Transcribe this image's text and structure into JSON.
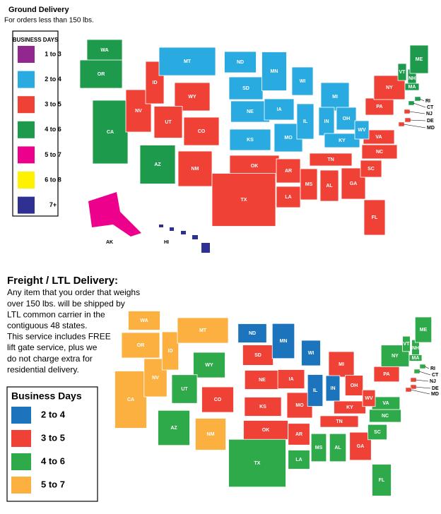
{
  "ground": {
    "title": "Ground Delivery",
    "subtitle": "For orders less than 150 lbs.",
    "legend": {
      "title": "BUSINESS DAYS",
      "items": [
        {
          "label": "1 to 3",
          "color": "#92278f"
        },
        {
          "label": "2 to 4",
          "color": "#29abe2"
        },
        {
          "label": "3 to 5",
          "color": "#ef4136"
        },
        {
          "label": "4 to 6",
          "color": "#1e9a4c"
        },
        {
          "label": "5 to 7",
          "color": "#ec008c"
        },
        {
          "label": "6 to 8",
          "color": "#fff200"
        },
        {
          "label": "7+",
          "color": "#2e3192"
        }
      ]
    },
    "states": [
      {
        "label": "WA",
        "color": "#1e9a4c"
      },
      {
        "label": "OR",
        "color": "#1e9a4c"
      },
      {
        "label": "CA",
        "color": "#1e9a4c"
      },
      {
        "label": "NV",
        "color": "#ef4136"
      },
      {
        "label": "ID",
        "color": "#ef4136"
      },
      {
        "label": "MT",
        "color": "#29abe2"
      },
      {
        "label": "WY",
        "color": "#ef4136"
      },
      {
        "label": "UT",
        "color": "#ef4136"
      },
      {
        "label": "CO",
        "color": "#ef4136"
      },
      {
        "label": "AZ",
        "color": "#1e9a4c"
      },
      {
        "label": "NM",
        "color": "#ef4136"
      },
      {
        "label": "ND",
        "color": "#29abe2"
      },
      {
        "label": "SD",
        "color": "#29abe2"
      },
      {
        "label": "NE",
        "color": "#29abe2"
      },
      {
        "label": "KS",
        "color": "#29abe2"
      },
      {
        "label": "OK",
        "color": "#ef4136"
      },
      {
        "label": "TX",
        "color": "#ef4136"
      },
      {
        "label": "MN",
        "color": "#29abe2"
      },
      {
        "label": "IA",
        "color": "#29abe2"
      },
      {
        "label": "MO",
        "color": "#29abe2"
      },
      {
        "label": "AR",
        "color": "#ef4136"
      },
      {
        "label": "LA",
        "color": "#ef4136"
      },
      {
        "label": "WI",
        "color": "#29abe2"
      },
      {
        "label": "IL",
        "color": "#29abe2"
      },
      {
        "label": "MS",
        "color": "#ef4136"
      },
      {
        "label": "MI",
        "color": "#29abe2"
      },
      {
        "label": "IN",
        "color": "#29abe2"
      },
      {
        "label": "OH",
        "color": "#29abe2"
      },
      {
        "label": "KY",
        "color": "#29abe2"
      },
      {
        "label": "TN",
        "color": "#ef4136"
      },
      {
        "label": "AL",
        "color": "#ef4136"
      },
      {
        "label": "GA",
        "color": "#ef4136"
      },
      {
        "label": "FL",
        "color": "#ef4136"
      },
      {
        "label": "SC",
        "color": "#ef4136"
      },
      {
        "label": "NC",
        "color": "#ef4136"
      },
      {
        "label": "VA",
        "color": "#ef4136"
      },
      {
        "label": "WV",
        "color": "#29abe2"
      },
      {
        "label": "PA",
        "color": "#ef4136"
      },
      {
        "label": "NY",
        "color": "#ef4136"
      },
      {
        "label": "VT",
        "color": "#1e9a4c"
      },
      {
        "label": "NH",
        "color": "#1e9a4c"
      },
      {
        "label": "ME",
        "color": "#1e9a4c"
      },
      {
        "label": "MA",
        "color": "#1e9a4c"
      },
      {
        "label": "RI",
        "color": "#1e9a4c"
      },
      {
        "label": "CT",
        "color": "#1e9a4c"
      },
      {
        "label": "NJ",
        "color": "#ef4136"
      },
      {
        "label": "DE",
        "color": "#ef4136"
      },
      {
        "label": "MD",
        "color": "#ef4136"
      },
      {
        "label": "AK",
        "color": "#ec008c"
      },
      {
        "label": "HI",
        "color": "#2e3192"
      }
    ]
  },
  "freight": {
    "title": "Freight / LTL Delivery:",
    "description": [
      "Any item that you order that weighs",
      "over 150 lbs. will be shipped by",
      "LTL common carrier in the",
      "contiguous 48 states.",
      "This service includes FREE",
      "lift gate service, plus we",
      "do not charge extra for",
      "residential delivery."
    ],
    "legend": {
      "title": "Business Days",
      "items": [
        {
          "label": "2 to 4",
          "color": "#1c75bc"
        },
        {
          "label": "3 to 5",
          "color": "#ef4136"
        },
        {
          "label": "4 to 6",
          "color": "#2eaa4a"
        },
        {
          "label": "5 to 7",
          "color": "#fbb040"
        }
      ]
    },
    "states": [
      {
        "label": "WA",
        "color": "#fbb040"
      },
      {
        "label": "OR",
        "color": "#fbb040"
      },
      {
        "label": "CA",
        "color": "#fbb040"
      },
      {
        "label": "NV",
        "color": "#fbb040"
      },
      {
        "label": "ID",
        "color": "#fbb040"
      },
      {
        "label": "MT",
        "color": "#fbb040"
      },
      {
        "label": "WY",
        "color": "#2eaa4a"
      },
      {
        "label": "UT",
        "color": "#2eaa4a"
      },
      {
        "label": "CO",
        "color": "#ef4136"
      },
      {
        "label": "AZ",
        "color": "#2eaa4a"
      },
      {
        "label": "NM",
        "color": "#fbb040"
      },
      {
        "label": "ND",
        "color": "#1c75bc"
      },
      {
        "label": "SD",
        "color": "#ef4136"
      },
      {
        "label": "NE",
        "color": "#ef4136"
      },
      {
        "label": "KS",
        "color": "#ef4136"
      },
      {
        "label": "OK",
        "color": "#ef4136"
      },
      {
        "label": "TX",
        "color": "#2eaa4a"
      },
      {
        "label": "MN",
        "color": "#1c75bc"
      },
      {
        "label": "IA",
        "color": "#ef4136"
      },
      {
        "label": "MO",
        "color": "#ef4136"
      },
      {
        "label": "AR",
        "color": "#ef4136"
      },
      {
        "label": "LA",
        "color": "#2eaa4a"
      },
      {
        "label": "WI",
        "color": "#1c75bc"
      },
      {
        "label": "IL",
        "color": "#1c75bc"
      },
      {
        "label": "MS",
        "color": "#2eaa4a"
      },
      {
        "label": "MI",
        "color": "#ef4136"
      },
      {
        "label": "IN",
        "color": "#1c75bc"
      },
      {
        "label": "OH",
        "color": "#ef4136"
      },
      {
        "label": "KY",
        "color": "#ef4136"
      },
      {
        "label": "TN",
        "color": "#ef4136"
      },
      {
        "label": "AL",
        "color": "#2eaa4a"
      },
      {
        "label": "GA",
        "color": "#ef4136"
      },
      {
        "label": "FL",
        "color": "#2eaa4a"
      },
      {
        "label": "SC",
        "color": "#2eaa4a"
      },
      {
        "label": "NC",
        "color": "#2eaa4a"
      },
      {
        "label": "VA",
        "color": "#2eaa4a"
      },
      {
        "label": "WV",
        "color": "#ef4136"
      },
      {
        "label": "PA",
        "color": "#ef4136"
      },
      {
        "label": "NY",
        "color": "#2eaa4a"
      },
      {
        "label": "VT",
        "color": "#2eaa4a"
      },
      {
        "label": "NH",
        "color": "#2eaa4a"
      },
      {
        "label": "ME",
        "color": "#2eaa4a"
      },
      {
        "label": "MA",
        "color": "#2eaa4a"
      },
      {
        "label": "RI",
        "color": "#2eaa4a"
      },
      {
        "label": "CT",
        "color": "#2eaa4a"
      },
      {
        "label": "NJ",
        "color": "#ef4136"
      },
      {
        "label": "DE",
        "color": "#ef4136"
      },
      {
        "label": "MD",
        "color": "#ef4136"
      }
    ]
  }
}
